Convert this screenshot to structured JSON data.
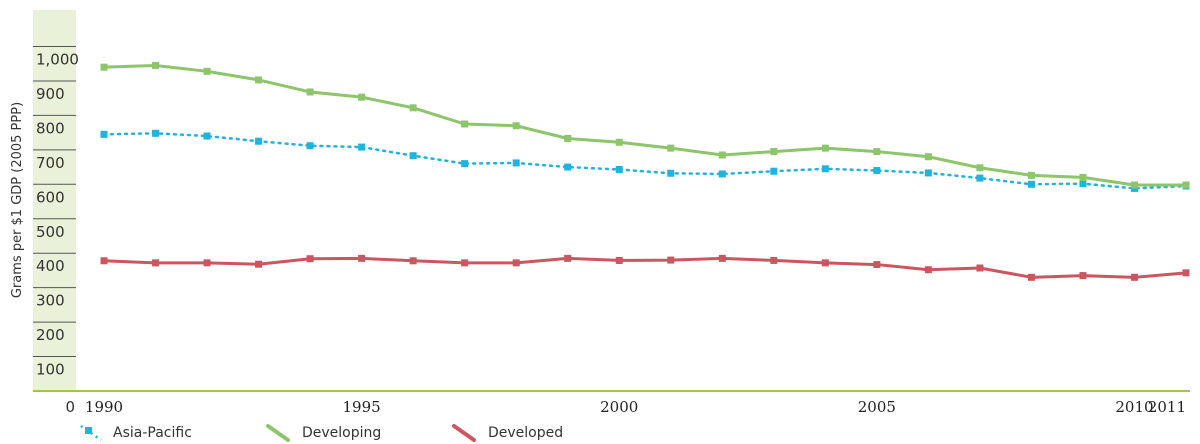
{
  "colors": {
    "asia_pacific": "#1fb3e0",
    "developing": "#8cc56a",
    "developed": "#cc5560",
    "axis_band": "#eaf1d9",
    "baseline": "#9cc84a"
  },
  "chart_data": {
    "type": "line",
    "ylabel": "Grams per $1 GDP (2005 PPP)",
    "ylim": [
      0,
      1050
    ],
    "y_ticks": [
      {
        "value": 0,
        "label": "0"
      },
      {
        "value": 100,
        "label": "100"
      },
      {
        "value": 200,
        "label": "200"
      },
      {
        "value": 300,
        "label": "300"
      },
      {
        "value": 400,
        "label": "400"
      },
      {
        "value": 500,
        "label": "500"
      },
      {
        "value": 600,
        "label": "600"
      },
      {
        "value": 700,
        "label": "700"
      },
      {
        "value": 800,
        "label": "800"
      },
      {
        "value": 900,
        "label": "900"
      },
      {
        "value": 1000,
        "label": "1,000"
      }
    ],
    "x": [
      1990,
      1991,
      1992,
      1993,
      1994,
      1995,
      1996,
      1997,
      1998,
      1999,
      2000,
      2001,
      2002,
      2003,
      2004,
      2005,
      2006,
      2007,
      2008,
      2009,
      2010,
      2011
    ],
    "x_ticks": [
      "1990",
      "1995",
      "2000",
      "2005",
      "2010",
      "2011"
    ],
    "grid": false,
    "legend_position": "bottom",
    "series": [
      {
        "name": "Asia-Pacific",
        "style": "dotted",
        "values": [
          745,
          748,
          740,
          725,
          712,
          708,
          683,
          660,
          662,
          650,
          643,
          632,
          630,
          638,
          645,
          640,
          633,
          618,
          600,
          602,
          588,
          595
        ]
      },
      {
        "name": "Developing",
        "style": "solid",
        "values": [
          940,
          945,
          928,
          903,
          868,
          853,
          822,
          775,
          770,
          733,
          722,
          705,
          685,
          695,
          705,
          695,
          680,
          648,
          626,
          620,
          598,
          598
        ]
      },
      {
        "name": "Developed",
        "style": "solid",
        "values": [
          378,
          372,
          372,
          368,
          384,
          385,
          378,
          372,
          372,
          385,
          379,
          380,
          385,
          379,
          372,
          367,
          352,
          357,
          330,
          335,
          330,
          343
        ]
      }
    ]
  }
}
